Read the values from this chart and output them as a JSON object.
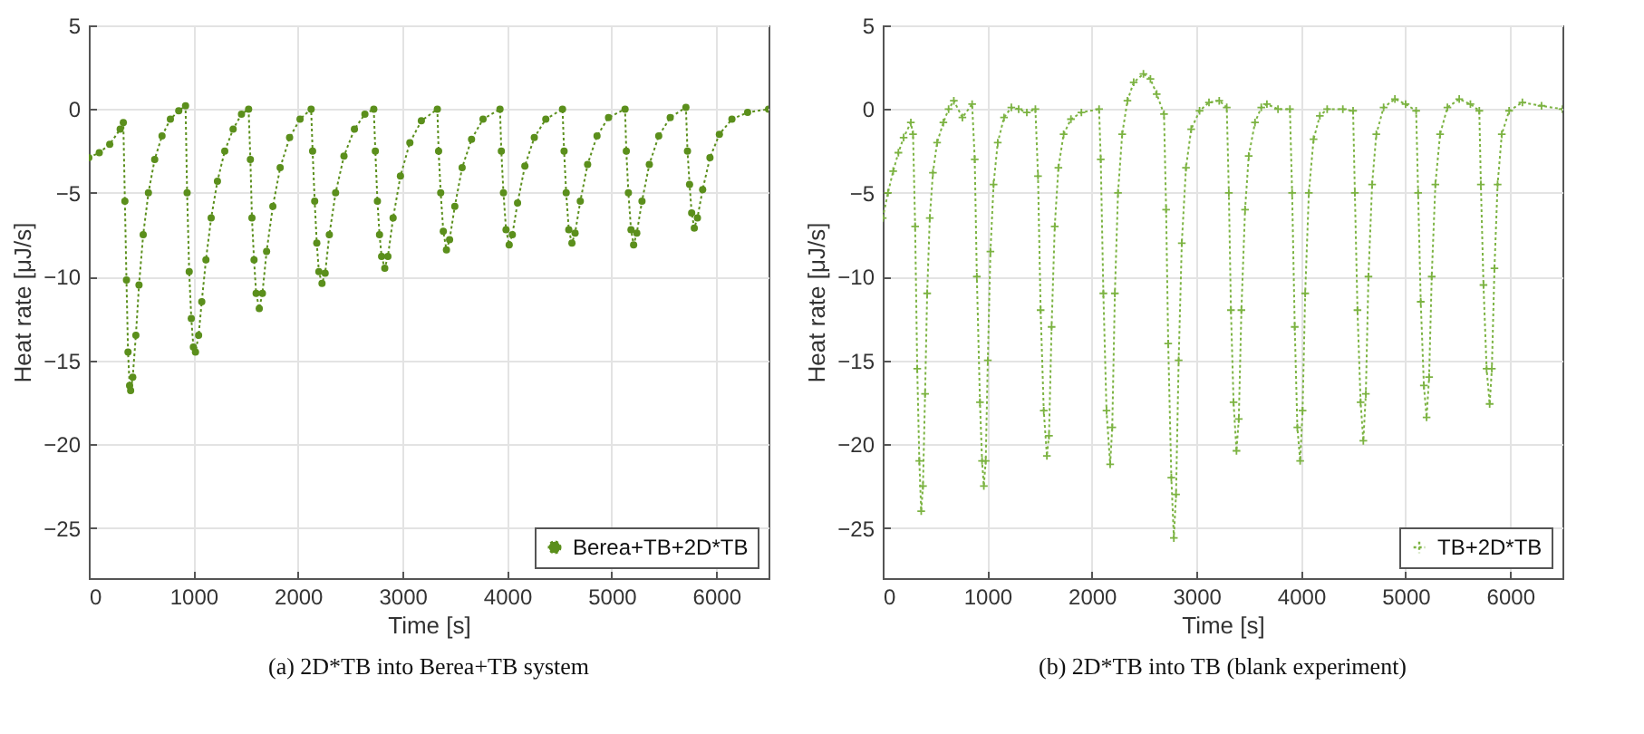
{
  "chart_data": [
    {
      "type": "line",
      "title": "(a) 2D*TB into Berea+TB system",
      "xlabel": "Time [s]",
      "ylabel": "Heat rate [μJ/s]",
      "xlim": [
        0,
        6500
      ],
      "ylim": [
        -28,
        5
      ],
      "xticks": [
        0,
        1000,
        2000,
        3000,
        4000,
        5000,
        6000
      ],
      "yticks": [
        -25,
        -20,
        -15,
        -10,
        -5,
        0,
        5
      ],
      "grid": true,
      "legend": "bottom right",
      "marker": "circle",
      "line_style": "dotted",
      "x": [
        0,
        100,
        200,
        300,
        330,
        345,
        360,
        375,
        390,
        400,
        420,
        450,
        480,
        520,
        570,
        630,
        700,
        780,
        860,
        925,
        940,
        960,
        980,
        1000,
        1020,
        1050,
        1080,
        1120,
        1170,
        1230,
        1300,
        1380,
        1460,
        1528,
        1545,
        1560,
        1580,
        1600,
        1630,
        1660,
        1700,
        1760,
        1830,
        1920,
        2020,
        2126,
        2140,
        2160,
        2180,
        2200,
        2230,
        2260,
        2300,
        2360,
        2440,
        2540,
        2640,
        2725,
        2740,
        2760,
        2780,
        2800,
        2830,
        2860,
        2910,
        2980,
        3070,
        3180,
        3333,
        3345,
        3365,
        3390,
        3420,
        3450,
        3500,
        3570,
        3660,
        3770,
        3932,
        3945,
        3965,
        3990,
        4020,
        4050,
        4100,
        4170,
        4260,
        4370,
        4530,
        4545,
        4565,
        4590,
        4620,
        4650,
        4700,
        4770,
        4860,
        4970,
        5128,
        5140,
        5160,
        5185,
        5210,
        5240,
        5290,
        5360,
        5450,
        5560,
        5710,
        5725,
        5745,
        5765,
        5790,
        5820,
        5870,
        5940,
        6030,
        6150,
        6300,
        6500
      ],
      "series": [
        {
          "name": "Berea+TB+2D*TB",
          "color": "#5b8f1c",
          "values": [
            -2.9,
            -2.6,
            -2.1,
            -1.2,
            -0.8,
            -5.5,
            -10.2,
            -14.5,
            -16.5,
            -16.8,
            -16.0,
            -13.5,
            -10.5,
            -7.5,
            -5,
            -3,
            -1.6,
            -0.6,
            -0.1,
            0.2,
            -5,
            -9.7,
            -12.5,
            -14.2,
            -14.5,
            -13.5,
            -11.5,
            -9,
            -6.5,
            -4.3,
            -2.5,
            -1.2,
            -0.3,
            0,
            -3,
            -6.5,
            -9,
            -11,
            -11.9,
            -11,
            -8.5,
            -5.8,
            -3.5,
            -1.7,
            -0.6,
            0,
            -2.5,
            -5.5,
            -8,
            -9.7,
            -10.4,
            -9.8,
            -7.5,
            -5,
            -2.8,
            -1.2,
            -0.3,
            0,
            -2.5,
            -5.5,
            -7.5,
            -8.8,
            -9.5,
            -8.8,
            -6.5,
            -4,
            -2,
            -0.7,
            0,
            -2.5,
            -5,
            -7.3,
            -8.4,
            -7.8,
            -5.8,
            -3.5,
            -1.8,
            -0.6,
            0,
            -2.5,
            -5,
            -7.2,
            -8.1,
            -7.5,
            -5.6,
            -3.4,
            -1.7,
            -0.6,
            0,
            -2.5,
            -5,
            -7.2,
            -8.0,
            -7.4,
            -5.5,
            -3.3,
            -1.6,
            -0.5,
            0,
            -2.5,
            -5,
            -7.2,
            -8.1,
            -7.4,
            -5.5,
            -3.3,
            -1.6,
            -0.5,
            0.1,
            -2.5,
            -4.5,
            -6.2,
            -7.1,
            -6.5,
            -4.8,
            -2.9,
            -1.5,
            -0.6,
            -0.2,
            0
          ]
        }
      ]
    },
    {
      "type": "line",
      "title": "(b) 2D*TB into TB (blank experiment)",
      "xlabel": "Time [s]",
      "ylabel": "Heat rate [μJ/s]",
      "xlim": [
        0,
        6500
      ],
      "ylim": [
        -28,
        5
      ],
      "xticks": [
        0,
        1000,
        2000,
        3000,
        4000,
        5000,
        6000
      ],
      "yticks": [
        -25,
        -20,
        -15,
        -10,
        -5,
        0,
        5
      ],
      "grid": true,
      "legend": "bottom right",
      "marker": "cross",
      "line_style": "dotted",
      "x": [
        0,
        50,
        100,
        150,
        200,
        269,
        290,
        310,
        330,
        350,
        368,
        385,
        405,
        425,
        450,
        480,
        520,
        580,
        630,
        680,
        762,
        855,
        880,
        900,
        930,
        950,
        967,
        985,
        1005,
        1030,
        1060,
        1100,
        1160,
        1230,
        1300,
        1378,
        1460,
        1485,
        1510,
        1540,
        1570,
        1590,
        1615,
        1645,
        1680,
        1730,
        1800,
        1900,
        2069,
        2085,
        2110,
        2140,
        2175,
        2195,
        2220,
        2250,
        2290,
        2340,
        2400,
        2493,
        2560,
        2620,
        2690,
        2710,
        2730,
        2760,
        2784,
        2805,
        2830,
        2860,
        2900,
        2950,
        3030,
        3120,
        3218,
        3290,
        3310,
        3330,
        3355,
        3383,
        3405,
        3430,
        3465,
        3500,
        3560,
        3620,
        3674,
        3780,
        3894,
        3915,
        3940,
        3965,
        3992,
        4015,
        4040,
        4075,
        4120,
        4180,
        4250,
        4400,
        4498,
        4515,
        4540,
        4570,
        4596,
        4620,
        4645,
        4680,
        4720,
        4790,
        4898,
        5000,
        5101,
        5120,
        5145,
        5175,
        5201,
        5225,
        5250,
        5285,
        5330,
        5400,
        5513,
        5620,
        5705,
        5720,
        5745,
        5775,
        5804,
        5825,
        5850,
        5880,
        5920,
        5990,
        6117,
        6300,
        6500
      ],
      "series": [
        {
          "name": "TB+2D*TB",
          "color": "#7cb342",
          "values": [
            -6.5,
            -5,
            -3.7,
            -2.6,
            -1.7,
            -0.8,
            -1.5,
            -7,
            -15.5,
            -21,
            -24,
            -22.5,
            -17,
            -11,
            -6.5,
            -3.8,
            -2,
            -0.8,
            0,
            0.5,
            -0.5,
            0.3,
            -3,
            -10,
            -17.5,
            -21,
            -22.5,
            -21,
            -15,
            -8.5,
            -4.5,
            -2,
            -0.5,
            0.1,
            0,
            -0.2,
            0,
            -4,
            -12,
            -18,
            -20.7,
            -19.5,
            -13,
            -7,
            -3.5,
            -1.5,
            -0.6,
            -0.2,
            0,
            -3,
            -11,
            -18,
            -21.2,
            -19,
            -11,
            -5,
            -1.5,
            0.5,
            1.6,
            2.1,
            1.8,
            0.9,
            -0.3,
            -6,
            -14,
            -22,
            -25.6,
            -23,
            -15,
            -8,
            -3.5,
            -1.2,
            -0.1,
            0.4,
            0.5,
            0.1,
            -5,
            -12,
            -17.5,
            -20.4,
            -18.5,
            -12,
            -6,
            -2.8,
            -0.8,
            0.1,
            0.3,
            0,
            0,
            -5,
            -13,
            -19,
            -21,
            -18,
            -11,
            -5,
            -1.8,
            -0.4,
            0,
            0,
            -0.1,
            -5,
            -12,
            -17.5,
            -19.8,
            -17,
            -10,
            -4.5,
            -1.5,
            0.1,
            0.6,
            0.3,
            -0.1,
            -5,
            -11.5,
            -16.5,
            -18.4,
            -16,
            -10,
            -4.5,
            -1.5,
            0.1,
            0.6,
            0.3,
            -0.1,
            -4.5,
            -10.5,
            -15.5,
            -17.6,
            -15.5,
            -9.5,
            -4.5,
            -1.5,
            -0.1,
            0.4,
            0.2,
            0
          ]
        }
      ]
    }
  ]
}
